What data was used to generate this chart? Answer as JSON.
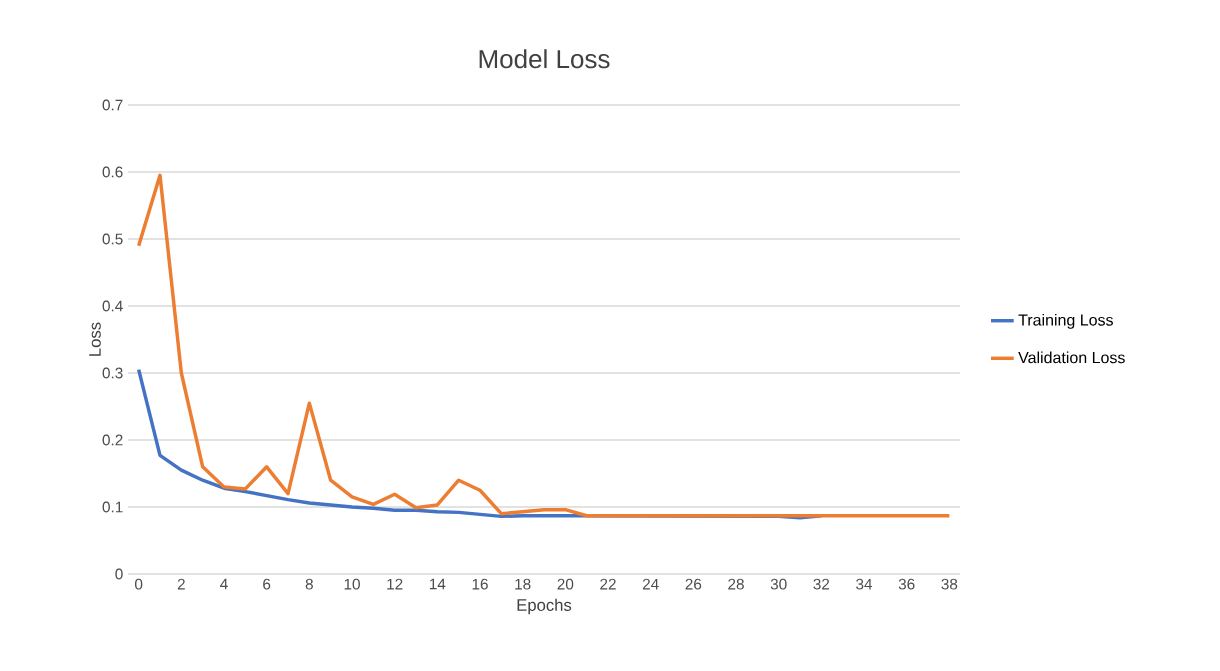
{
  "chart_data": {
    "type": "line",
    "title": "Model Loss",
    "xlabel": "Epochs",
    "ylabel": "Loss",
    "categories": [
      "0",
      null,
      "2",
      null,
      "4",
      null,
      "6",
      null,
      "8",
      null,
      "10",
      null,
      "12",
      null,
      "14",
      null,
      "16",
      null,
      "18",
      null,
      "20",
      null,
      "22",
      null,
      "24",
      null,
      "26",
      null,
      "28",
      null,
      "30",
      null,
      "32",
      null,
      "34",
      null,
      "36",
      null,
      "38"
    ],
    "series": [
      {
        "name": "Training Loss",
        "color": "#4472c4",
        "values": [
          0.305,
          0.177,
          0.155,
          0.14,
          0.128,
          0.123,
          0.117,
          0.111,
          0.106,
          0.103,
          0.1,
          0.098,
          0.095,
          0.095,
          0.093,
          0.092,
          0.089,
          0.086,
          0.087,
          0.087,
          0.087,
          0.087,
          null,
          null,
          null,
          null,
          null,
          null,
          null,
          null,
          0.086,
          0.084,
          0.087,
          null,
          null,
          null,
          null,
          null,
          null
        ]
      },
      {
        "name": "Validation Loss",
        "color": "#ed7d31",
        "values": [
          0.49,
          0.595,
          0.3,
          0.16,
          0.13,
          0.127,
          0.16,
          0.12,
          0.255,
          0.14,
          0.115,
          0.104,
          0.119,
          0.099,
          0.103,
          0.14,
          0.125,
          0.09,
          0.093,
          0.096,
          0.096,
          0.087,
          0.087,
          0.087,
          0.087,
          0.087,
          0.087,
          0.087,
          0.087,
          0.087,
          0.087,
          0.087,
          0.087,
          0.087,
          0.087,
          0.087,
          0.087,
          0.087,
          0.087
        ]
      }
    ],
    "ylim": [
      0,
      0.7
    ],
    "yticks": [
      0,
      0.1,
      0.2,
      0.3,
      0.4,
      0.5,
      0.6,
      0.7
    ],
    "grid": "y",
    "legend": "right",
    "marker": "none",
    "line_style": "solid"
  }
}
